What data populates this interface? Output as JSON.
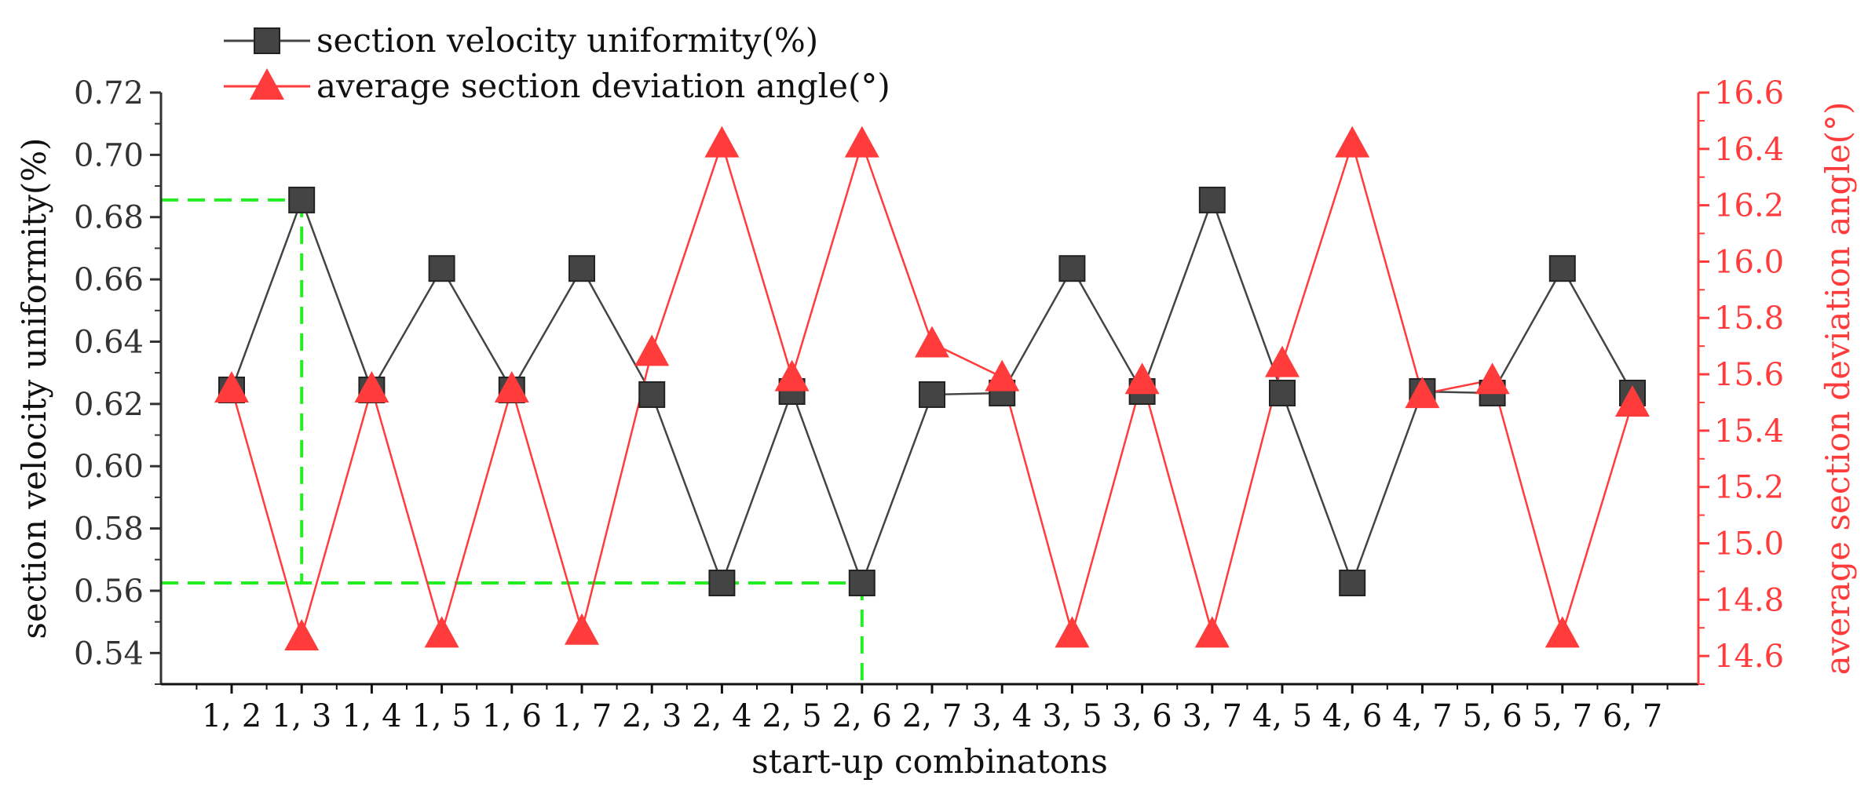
{
  "chart_data": {
    "type": "line",
    "xlabel": "start-up combinatons",
    "categories": [
      "1, 2",
      "1, 3",
      "1, 4",
      "1, 5",
      "1, 6",
      "1, 7",
      "2, 3",
      "2, 4",
      "2, 5",
      "2, 6",
      "2, 7",
      "3, 4",
      "3, 5",
      "3, 6",
      "3, 7",
      "4, 5",
      "4, 6",
      "4, 7",
      "5, 6",
      "5, 7",
      "6, 7"
    ],
    "y_left": {
      "label": "section velocity uniformity(%)",
      "range": [
        0.53,
        0.72
      ],
      "ticks": [
        "0.54",
        "0.56",
        "0.58",
        "0.60",
        "0.62",
        "0.64",
        "0.66",
        "0.68",
        "0.70",
        "0.72"
      ],
      "tick_values": [
        0.54,
        0.56,
        0.58,
        0.6,
        0.62,
        0.64,
        0.66,
        0.68,
        0.7,
        0.72
      ],
      "color": "#333333"
    },
    "y_right": {
      "label": "average section deviation angle(°)",
      "range": [
        14.5,
        16.6
      ],
      "ticks": [
        "14.6",
        "14.8",
        "15.0",
        "15.2",
        "15.4",
        "15.6",
        "15.8",
        "16.0",
        "16.2",
        "16.4",
        "16.6"
      ],
      "tick_values": [
        14.6,
        14.8,
        15.0,
        15.2,
        15.4,
        15.6,
        15.8,
        16.0,
        16.2,
        16.4,
        16.6
      ],
      "color": "#ff3b3b"
    },
    "series": [
      {
        "name": "section velocity uniformity(%)",
        "axis": "left",
        "marker": "square",
        "color": "#444444",
        "values": [
          0.6245,
          0.6855,
          0.6245,
          0.6635,
          0.6245,
          0.6635,
          0.623,
          0.5625,
          0.624,
          0.5625,
          0.623,
          0.6235,
          0.6635,
          0.624,
          0.6855,
          0.6235,
          0.5625,
          0.624,
          0.6235,
          0.6635,
          0.6235
        ]
      },
      {
        "name": "average section deviation angle(°)",
        "axis": "right",
        "marker": "triangle",
        "color": "#ff3b3b",
        "values": [
          15.55,
          14.67,
          15.55,
          14.68,
          15.55,
          14.69,
          15.68,
          16.42,
          15.59,
          16.42,
          15.71,
          15.59,
          14.68,
          15.58,
          14.68,
          15.64,
          16.42,
          15.53,
          15.58,
          14.68,
          15.5
        ]
      }
    ],
    "annotations": {
      "color": "#22ee22",
      "style": "dashed",
      "max_value": 0.6855,
      "max_category": "1, 3",
      "min_value": 0.5625,
      "min_category": "2, 6"
    },
    "legend_position": "top-left",
    "grid": false
  }
}
